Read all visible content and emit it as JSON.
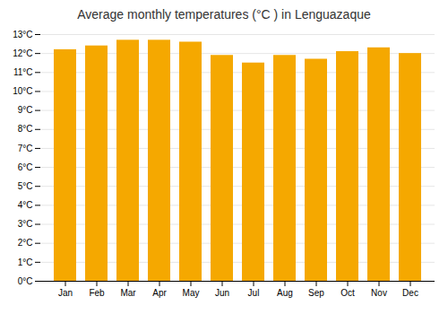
{
  "chart_data": {
    "type": "bar",
    "title": "Average monthly temperatures (°C ) in Lenguazaque",
    "categories": [
      "Jan",
      "Feb",
      "Mar",
      "Apr",
      "May",
      "Jun",
      "Jul",
      "Aug",
      "Sep",
      "Oct",
      "Nov",
      "Dec"
    ],
    "values": [
      12.2,
      12.4,
      12.7,
      12.7,
      12.6,
      11.9,
      11.5,
      11.9,
      11.7,
      12.1,
      12.3,
      12.0
    ],
    "color": "#F5A800",
    "ylim": [
      0,
      13
    ],
    "yticks": [
      {
        "value": 0,
        "label": "0°C"
      },
      {
        "value": 1,
        "label": "1°C"
      },
      {
        "value": 2,
        "label": "2°C"
      },
      {
        "value": 3,
        "label": "3°C"
      },
      {
        "value": 4,
        "label": "4°C"
      },
      {
        "value": 5,
        "label": "5°C"
      },
      {
        "value": 6,
        "label": "6°C"
      },
      {
        "value": 7,
        "label": "7°C"
      },
      {
        "value": 8,
        "label": "8°C"
      },
      {
        "value": 9,
        "label": "9°C"
      },
      {
        "value": 10,
        "label": "10°C"
      },
      {
        "value": 11,
        "label": "11°C"
      },
      {
        "value": 12,
        "label": "12°C"
      },
      {
        "value": 13,
        "label": "13°C"
      }
    ],
    "grid": true
  }
}
